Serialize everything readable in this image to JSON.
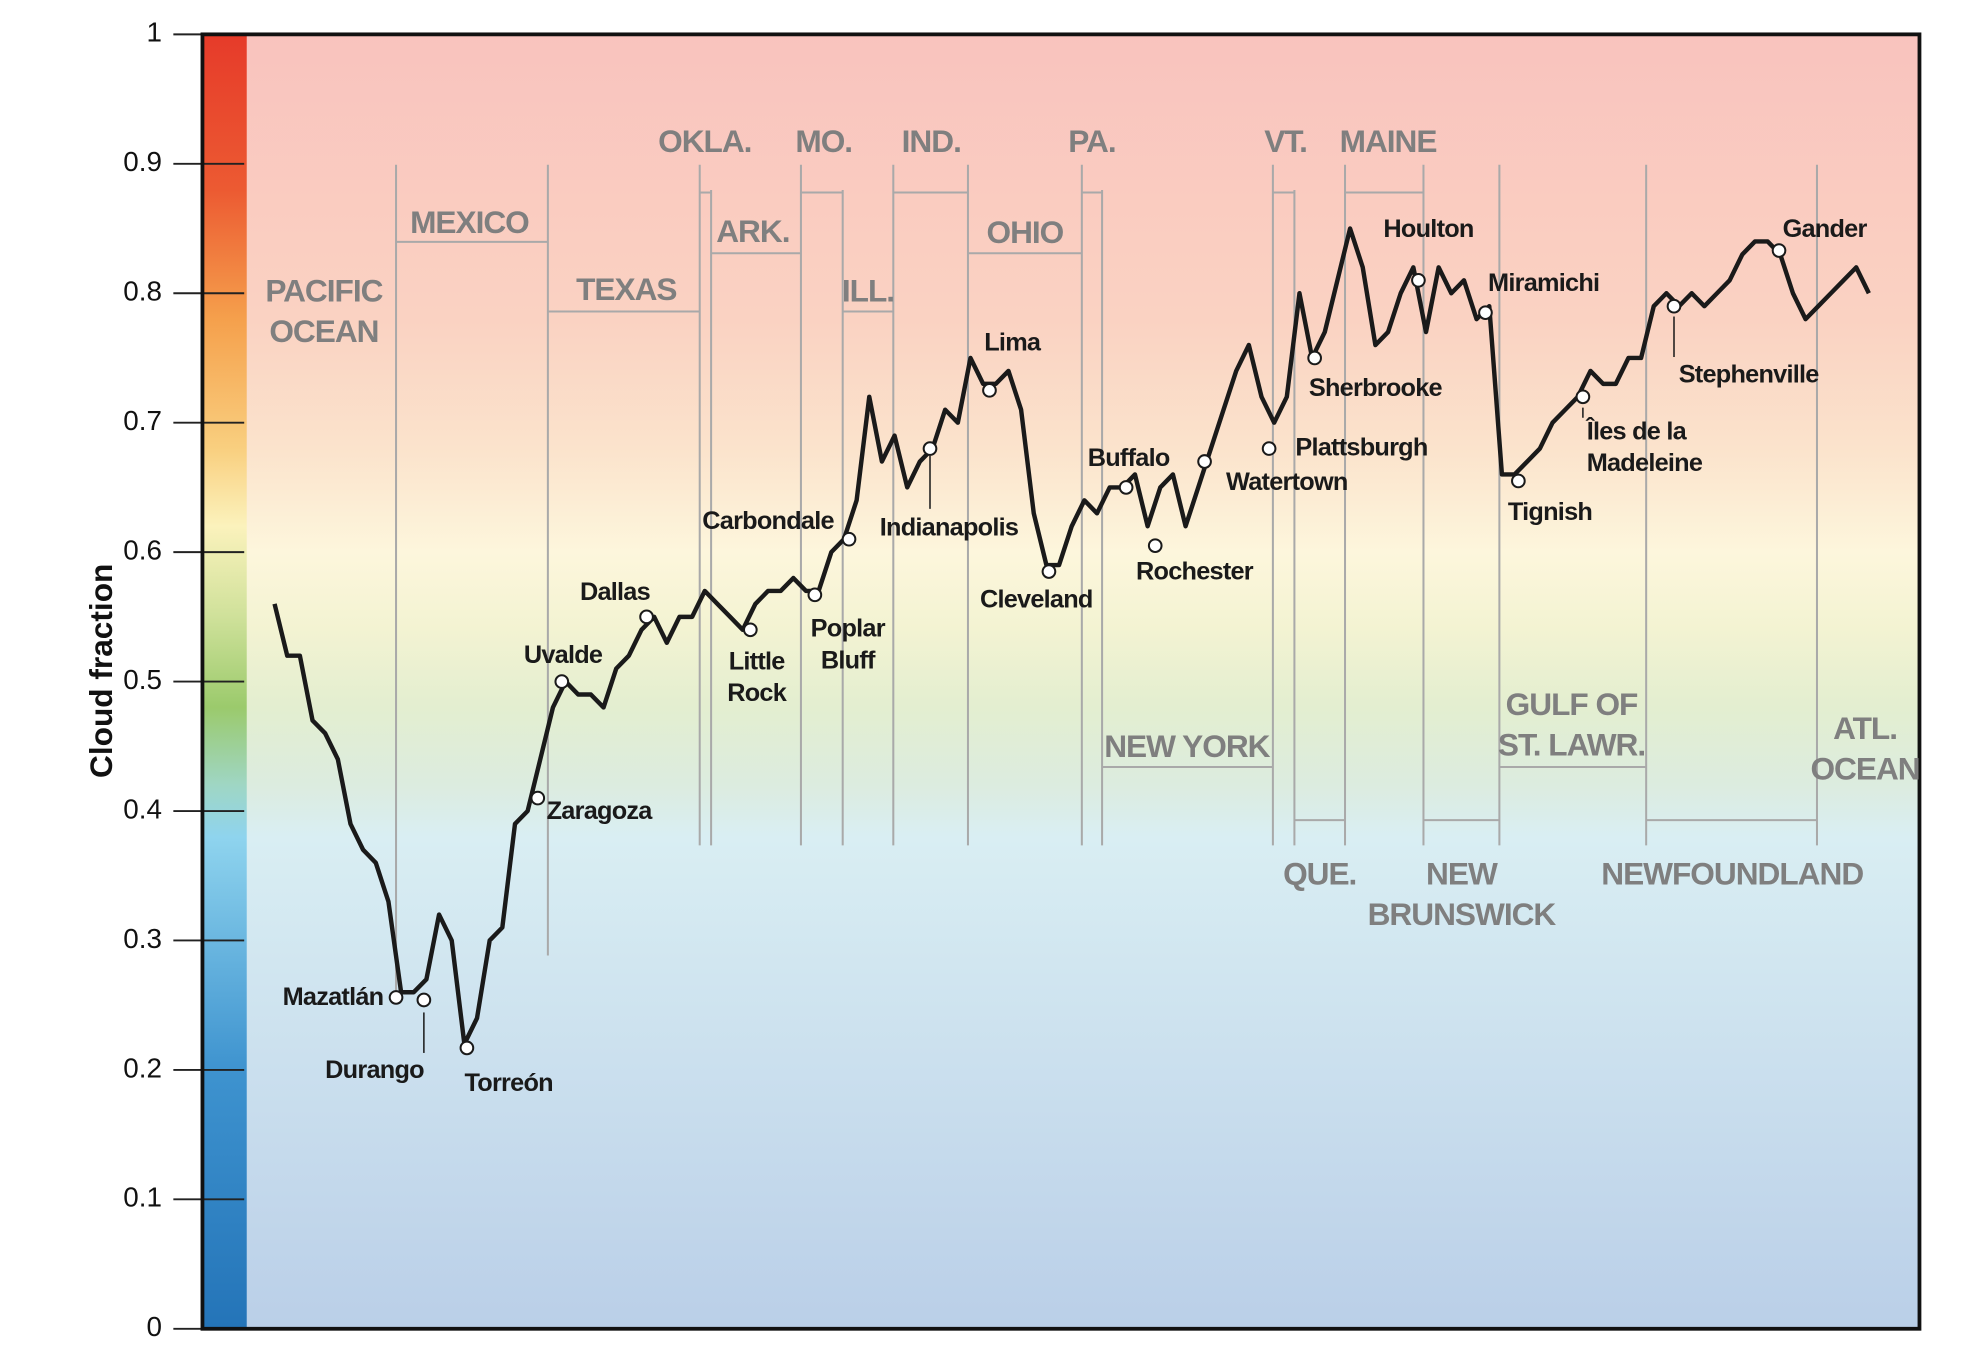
{
  "chart_data": {
    "type": "line",
    "ylabel": "Cloud fraction",
    "color": "#1a1a1a",
    "ylim": [
      0,
      1
    ],
    "yticks": [
      0,
      0.1,
      0.2,
      0.3,
      0.4,
      0.5,
      0.6,
      0.7,
      0.8,
      0.9,
      1
    ],
    "values": [
      0.56,
      0.52,
      0.52,
      0.47,
      0.46,
      0.44,
      0.39,
      0.37,
      0.36,
      0.33,
      0.26,
      0.26,
      0.27,
      0.32,
      0.3,
      0.22,
      0.24,
      0.3,
      0.31,
      0.39,
      0.4,
      0.44,
      0.48,
      0.5,
      0.49,
      0.49,
      0.48,
      0.51,
      0.52,
      0.54,
      0.55,
      0.53,
      0.55,
      0.55,
      0.57,
      0.56,
      0.55,
      0.54,
      0.56,
      0.57,
      0.57,
      0.58,
      0.57,
      0.57,
      0.6,
      0.61,
      0.64,
      0.72,
      0.67,
      0.69,
      0.65,
      0.67,
      0.68,
      0.71,
      0.7,
      0.75,
      0.73,
      0.73,
      0.74,
      0.71,
      0.63,
      0.59,
      0.59,
      0.62,
      0.64,
      0.63,
      0.65,
      0.65,
      0.66,
      0.62,
      0.65,
      0.66,
      0.62,
      0.65,
      0.68,
      0.71,
      0.74,
      0.76,
      0.72,
      0.7,
      0.72,
      0.8,
      0.75,
      0.77,
      0.81,
      0.85,
      0.82,
      0.76,
      0.77,
      0.8,
      0.82,
      0.77,
      0.82,
      0.8,
      0.81,
      0.78,
      0.79,
      0.66,
      0.66,
      0.67,
      0.68,
      0.7,
      0.71,
      0.72,
      0.74,
      0.73,
      0.73,
      0.75,
      0.75,
      0.79,
      0.8,
      0.79,
      0.8,
      0.79,
      0.8,
      0.81,
      0.83,
      0.84,
      0.84,
      0.83,
      0.8,
      0.78,
      0.79,
      0.8,
      0.81,
      0.82,
      0.8
    ],
    "cities": [
      {
        "label": [
          "Mazatlán"
        ],
        "value": 0.256
      },
      {
        "label": [
          "Durango"
        ],
        "value": 0.254
      },
      {
        "label": [
          "Torreón"
        ],
        "value": 0.217
      },
      {
        "label": [
          "Zaragoza"
        ],
        "value": 0.41
      },
      {
        "label": [
          "Uvalde"
        ],
        "value": 0.5
      },
      {
        "label": [
          "Dallas"
        ],
        "value": 0.55
      },
      {
        "label": [
          "Little",
          "Rock"
        ],
        "value": 0.54
      },
      {
        "label": [
          "Poplar",
          "Bluff"
        ],
        "value": 0.567
      },
      {
        "label": [
          "Carbondale"
        ],
        "value": 0.61
      },
      {
        "label": [
          "Indianapolis"
        ],
        "value": 0.68
      },
      {
        "label": [
          "Lima"
        ],
        "value": 0.725
      },
      {
        "label": [
          "Cleveland"
        ],
        "value": 0.585
      },
      {
        "label": [
          "Buffalo"
        ],
        "value": 0.65
      },
      {
        "label": [
          "Rochester"
        ],
        "value": 0.605
      },
      {
        "label": [
          "Watertown"
        ],
        "value": 0.67
      },
      {
        "label": [
          "Plattsburgh"
        ],
        "value": 0.68
      },
      {
        "label": [
          "Sherbrooke"
        ],
        "value": 0.75
      },
      {
        "label": [
          "Houlton"
        ],
        "value": 0.81
      },
      {
        "label": [
          "Miramichi"
        ],
        "value": 0.785
      },
      {
        "label": [
          "Tignish"
        ],
        "value": 0.655
      },
      {
        "label": [
          "Îles de la",
          "Madeleine"
        ],
        "value": 0.72
      },
      {
        "label": [
          "Stephenville"
        ],
        "value": 0.79
      },
      {
        "label": [
          "Gander"
        ],
        "value": 0.833
      }
    ],
    "regions": [
      {
        "label": [
          "PACIFIC",
          "OCEAN"
        ]
      },
      {
        "label": [
          "MEXICO"
        ]
      },
      {
        "label": [
          "TEXAS"
        ]
      },
      {
        "label": [
          "OKLA."
        ]
      },
      {
        "label": [
          "ARK."
        ]
      },
      {
        "label": [
          "MO."
        ]
      },
      {
        "label": [
          "ILL."
        ]
      },
      {
        "label": [
          "IND."
        ]
      },
      {
        "label": [
          "OHIO"
        ]
      },
      {
        "label": [
          "PA."
        ]
      },
      {
        "label": [
          "NEW YORK"
        ]
      },
      {
        "label": [
          "VT."
        ]
      },
      {
        "label": [
          "MAINE"
        ]
      },
      {
        "label": [
          "QUE."
        ]
      },
      {
        "label": [
          "NEW",
          "BRUNSWICK"
        ]
      },
      {
        "label": [
          "GULF OF",
          "ST. LAWR."
        ]
      },
      {
        "label": [
          "NEWFOUNDLAND"
        ]
      },
      {
        "label": [
          "ATL.",
          "OCEAN"
        ]
      }
    ]
  }
}
